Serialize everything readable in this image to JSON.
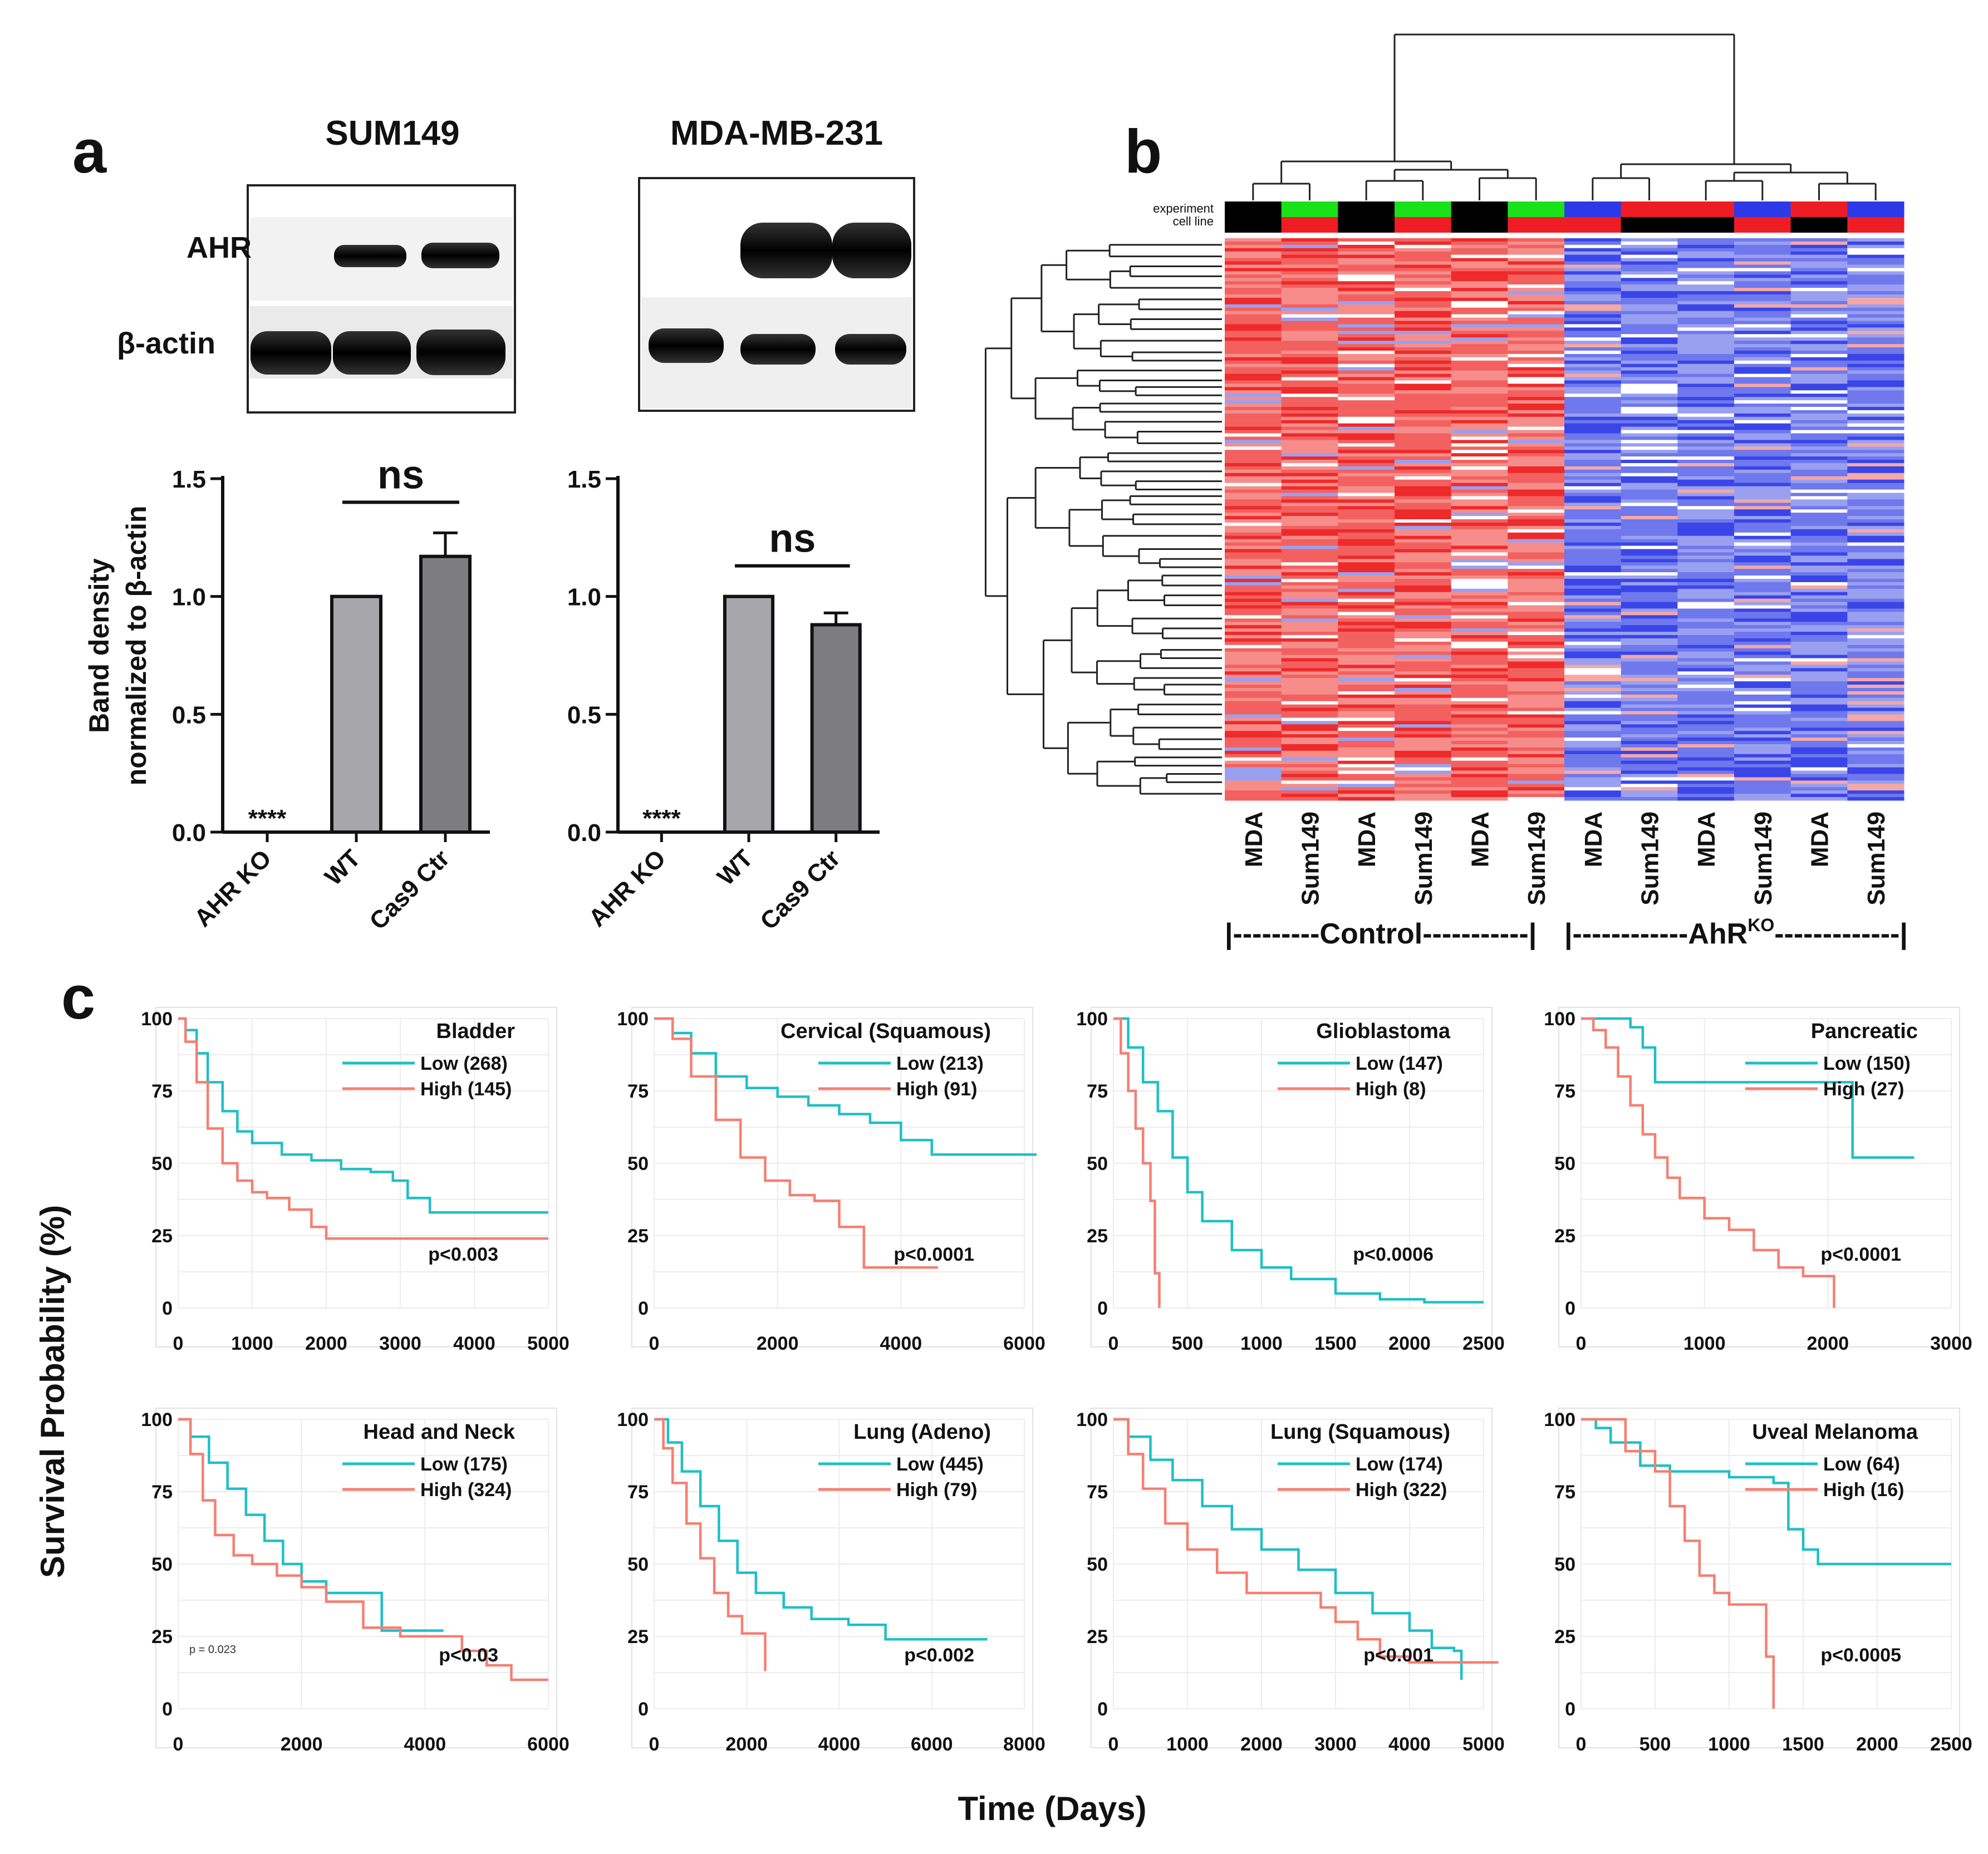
{
  "figure": {
    "panels": {
      "a": "a",
      "b": "b",
      "c": "c"
    },
    "c_ylabel": "Survival Probability (%)",
    "c_xlabel": "Time (Days)"
  },
  "panel_a": {
    "blots": [
      {
        "cell_line": "SUM149",
        "bands": [
          "AHR",
          "β-actin"
        ]
      },
      {
        "cell_line": "MDA-MB-231"
      }
    ],
    "ylabel_line1": "Band density",
    "ylabel_line2": "normalized to β-actin",
    "significance_label": "ns",
    "ko_marker": "****"
  },
  "panel_b": {
    "legend": [
      "experiment",
      "cell line"
    ],
    "columns": [
      "MDA",
      "Sum149",
      "MDA",
      "Sum149",
      "MDA",
      "Sum149",
      "MDA",
      "Sum149",
      "MDA",
      "Sum149",
      "MDA",
      "Sum149"
    ],
    "group_labels": {
      "control": "|---------Control-----------|",
      "ko_prefix": "|------------AhR",
      "ko_sup": "KO",
      "ko_suffix": "-------------|"
    },
    "colors": {
      "red": "#ee1c24",
      "blue": "#2d39e6",
      "green": "#19e219",
      "black": "#000000"
    }
  },
  "chart_data": [
    {
      "type": "bar",
      "title": "SUM149",
      "categories": [
        "AHR KO",
        "WT",
        "Cas9 Ctr"
      ],
      "values": [
        0,
        1.0,
        1.17
      ],
      "errors": [
        0,
        0.005,
        0.1
      ],
      "ylabel": "Band density normalized to β-actin",
      "ylim": [
        0,
        1.5
      ],
      "yticks": [
        "0.0",
        "0.5",
        "1.0",
        "1.5"
      ],
      "annotations": [
        "****",
        "ns"
      ]
    },
    {
      "type": "bar",
      "title": "MDA-MB-231",
      "categories": [
        "AHR KO",
        "WT",
        "Cas9 Ctr"
      ],
      "values": [
        0,
        1.0,
        0.88
      ],
      "errors": [
        0,
        0,
        0.05
      ],
      "ylabel": "Band density normalized to β-actin",
      "ylim": [
        0,
        1.5
      ],
      "yticks": [
        "0.0",
        "0.5",
        "1.0",
        "1.5"
      ],
      "annotations": [
        "****",
        "ns"
      ]
    },
    {
      "type": "line",
      "title": "Bladder",
      "xlim": [
        0,
        5000
      ],
      "xticks": [
        "0",
        "1000",
        "2000",
        "3000",
        "4000",
        "5000"
      ],
      "ylim": [
        0,
        100
      ],
      "yticks": [
        "0",
        "25",
        "50",
        "75",
        "100"
      ],
      "series": [
        {
          "name": "Low (268)",
          "color": "#1fbfc6",
          "x": [
            0,
            100,
            250,
            400,
            600,
            800,
            1000,
            1400,
            1800,
            2200,
            2600,
            2900,
            3100,
            3400,
            4000,
            5000
          ],
          "y": [
            100,
            96,
            88,
            78,
            68,
            61,
            57,
            53,
            51,
            48,
            47,
            44,
            38,
            33,
            33,
            33
          ]
        },
        {
          "name": "High (145)",
          "color": "#f57f72",
          "x": [
            0,
            100,
            250,
            400,
            600,
            800,
            1000,
            1200,
            1500,
            1800,
            2000,
            3000,
            5000
          ],
          "y": [
            100,
            92,
            78,
            62,
            50,
            44,
            40,
            38,
            34,
            28,
            24,
            24,
            24
          ]
        }
      ],
      "annotation": "p<0.003"
    },
    {
      "type": "line",
      "title": "Cervical (Squamous)",
      "xlim": [
        0,
        6000
      ],
      "xticks": [
        "0",
        "2000",
        "4000",
        "6000"
      ],
      "ylim": [
        0,
        100
      ],
      "yticks": [
        "0",
        "25",
        "50",
        "75",
        "100"
      ],
      "series": [
        {
          "name": "Low (213)",
          "color": "#1fbfc6",
          "x": [
            0,
            300,
            600,
            1000,
            1500,
            2000,
            2500,
            3000,
            3500,
            4000,
            4500,
            6200
          ],
          "y": [
            100,
            95,
            88,
            80,
            76,
            73,
            70,
            67,
            64,
            58,
            53,
            53
          ]
        },
        {
          "name": "High (91)",
          "color": "#f57f72",
          "x": [
            0,
            300,
            600,
            1000,
            1400,
            1800,
            2200,
            2600,
            3000,
            3400,
            4600
          ],
          "y": [
            100,
            93,
            80,
            65,
            52,
            44,
            39,
            37,
            28,
            14,
            14
          ]
        }
      ],
      "annotation": "p<0.0001"
    },
    {
      "type": "line",
      "title": "Glioblastoma",
      "xlim": [
        0,
        2500
      ],
      "xticks": [
        "0",
        "500",
        "1000",
        "1500",
        "2000",
        "2500"
      ],
      "ylim": [
        0,
        100
      ],
      "yticks": [
        "0",
        "25",
        "50",
        "75",
        "100"
      ],
      "series": [
        {
          "name": "Low (147)",
          "color": "#1fbfc6",
          "x": [
            0,
            100,
            200,
            300,
            400,
            500,
            600,
            800,
            1000,
            1200,
            1500,
            1800,
            2100,
            2500
          ],
          "y": [
            100,
            90,
            78,
            68,
            52,
            40,
            30,
            20,
            14,
            10,
            5,
            3,
            2,
            2
          ]
        },
        {
          "name": "High (8)",
          "color": "#f57f72",
          "x": [
            0,
            50,
            100,
            150,
            200,
            250,
            280,
            310
          ],
          "y": [
            100,
            88,
            75,
            62,
            50,
            37,
            12,
            0
          ]
        }
      ],
      "annotation": "p<0.0006"
    },
    {
      "type": "line",
      "title": "Pancreatic",
      "xlim": [
        0,
        3000
      ],
      "xticks": [
        "0",
        "1000",
        "2000",
        "3000"
      ],
      "ylim": [
        0,
        100
      ],
      "yticks": [
        "0",
        "25",
        "50",
        "75",
        "100"
      ],
      "series": [
        {
          "name": "Low (150)",
          "color": "#1fbfc6",
          "x": [
            0,
            300,
            400,
            500,
            600,
            1000,
            1500,
            2100,
            2200,
            2700
          ],
          "y": [
            100,
            100,
            97,
            90,
            78,
            78,
            78,
            78,
            52,
            52
          ]
        },
        {
          "name": "High (27)",
          "color": "#f57f72",
          "x": [
            0,
            100,
            200,
            300,
            400,
            500,
            600,
            700,
            800,
            1000,
            1200,
            1400,
            1600,
            1800,
            2000,
            2050
          ],
          "y": [
            100,
            96,
            90,
            80,
            70,
            60,
            52,
            45,
            38,
            31,
            27,
            20,
            14,
            11,
            11,
            0
          ]
        }
      ],
      "annotation": "p<0.0001"
    },
    {
      "type": "line",
      "title": "Head and Neck",
      "xlim": [
        0,
        6000
      ],
      "xticks": [
        "0",
        "2000",
        "4000",
        "6000"
      ],
      "ylim": [
        0,
        100
      ],
      "yticks": [
        "0",
        "25",
        "50",
        "75",
        "100"
      ],
      "series": [
        {
          "name": "Low (175)",
          "color": "#1fbfc6",
          "x": [
            0,
            200,
            500,
            800,
            1100,
            1400,
            1700,
            2000,
            2400,
            3000,
            3300,
            4300
          ],
          "y": [
            100,
            94,
            85,
            76,
            67,
            58,
            50,
            44,
            40,
            40,
            27,
            27
          ]
        },
        {
          "name": "High (324)",
          "color": "#f57f72",
          "x": [
            0,
            200,
            400,
            600,
            900,
            1200,
            1600,
            2000,
            2400,
            3000,
            3600,
            4000,
            4600,
            5000,
            5400,
            6000
          ],
          "y": [
            100,
            88,
            72,
            60,
            53,
            50,
            46,
            42,
            37,
            28,
            25,
            25,
            20,
            15,
            10,
            10
          ]
        }
      ],
      "annotation": "p<0.03",
      "note": "p = 0.023"
    },
    {
      "type": "line",
      "title": "Lung (Adeno)",
      "xlim": [
        0,
        8000
      ],
      "xticks": [
        "0",
        "2000",
        "4000",
        "6000",
        "8000"
      ],
      "ylim": [
        0,
        100
      ],
      "yticks": [
        "0",
        "25",
        "50",
        "75",
        "100"
      ],
      "series": [
        {
          "name": "Low (445)",
          "color": "#1fbfc6",
          "x": [
            0,
            300,
            600,
            1000,
            1400,
            1800,
            2200,
            2800,
            3400,
            4200,
            5000,
            7200
          ],
          "y": [
            100,
            92,
            82,
            70,
            58,
            47,
            40,
            35,
            31,
            29,
            24,
            24
          ]
        },
        {
          "name": "High (79)",
          "color": "#f57f72",
          "x": [
            0,
            200,
            400,
            700,
            1000,
            1300,
            1600,
            1900,
            2300,
            2400
          ],
          "y": [
            100,
            90,
            78,
            64,
            52,
            40,
            32,
            26,
            26,
            13
          ]
        }
      ],
      "annotation": "p<0.002"
    },
    {
      "type": "line",
      "title": "Lung (Squamous)",
      "xlim": [
        0,
        5000
      ],
      "xticks": [
        "0",
        "1000",
        "2000",
        "3000",
        "4000",
        "5000"
      ],
      "ylim": [
        0,
        100
      ],
      "yticks": [
        "0",
        "25",
        "50",
        "75",
        "100"
      ],
      "series": [
        {
          "name": "Low (174)",
          "color": "#1fbfc6",
          "x": [
            0,
            200,
            500,
            800,
            1200,
            1600,
            2000,
            2500,
            3000,
            3500,
            4000,
            4300,
            4600,
            4700
          ],
          "y": [
            100,
            94,
            86,
            79,
            70,
            62,
            55,
            48,
            40,
            33,
            27,
            21,
            20,
            10
          ]
        },
        {
          "name": "High (322)",
          "color": "#f57f72",
          "x": [
            0,
            200,
            400,
            700,
            1000,
            1400,
            1800,
            2200,
            2800,
            3000,
            3300,
            3600,
            4000,
            4500,
            5200
          ],
          "y": [
            100,
            88,
            76,
            64,
            55,
            47,
            40,
            40,
            35,
            30,
            24,
            18,
            16,
            16,
            16
          ]
        }
      ],
      "annotation": "p<0.001"
    },
    {
      "type": "line",
      "title": "Uveal Melanoma",
      "xlim": [
        0,
        2500
      ],
      "xticks": [
        "0",
        "500",
        "1000",
        "1500",
        "2000",
        "2500"
      ],
      "ylim": [
        0,
        100
      ],
      "yticks": [
        "0",
        "25",
        "50",
        "75",
        "100"
      ],
      "series": [
        {
          "name": "Low (64)",
          "color": "#1fbfc6",
          "x": [
            0,
            100,
            200,
            400,
            600,
            1000,
            1300,
            1400,
            1500,
            1600,
            2500
          ],
          "y": [
            100,
            97,
            92,
            84,
            82,
            80,
            78,
            62,
            55,
            50,
            50
          ]
        },
        {
          "name": "High (16)",
          "color": "#f57f72",
          "x": [
            0,
            300,
            500,
            600,
            700,
            800,
            900,
            1000,
            1200,
            1250,
            1300
          ],
          "y": [
            100,
            89,
            82,
            70,
            58,
            46,
            40,
            36,
            36,
            18,
            0
          ]
        }
      ],
      "annotation": "p<0.0005"
    }
  ]
}
